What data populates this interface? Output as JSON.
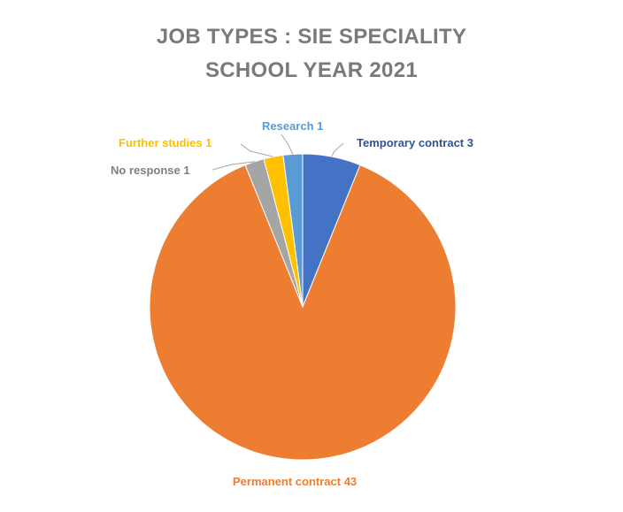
{
  "chart_data": {
    "type": "pie",
    "title_line1": "JOB TYPES : SIE SPECIALITY",
    "title_line2": "SCHOOL YEAR 2021",
    "slices": [
      {
        "label": "Temporary contract",
        "value": 3,
        "color": "#4472c4"
      },
      {
        "label": "Permanent contract",
        "value": 43,
        "color": "#ed7d31"
      },
      {
        "label": "No response",
        "value": 1,
        "color": "#a5a5a5"
      },
      {
        "label": "Further studies",
        "value": 1,
        "color": "#ffc000"
      },
      {
        "label": "Research",
        "value": 1,
        "color": "#5b9bd5"
      }
    ],
    "data_labels": [
      "Temporary contract 3",
      "Permanent contract 43",
      "No response 1",
      "Further studies 1",
      "Research 1"
    ],
    "legend": "none"
  }
}
